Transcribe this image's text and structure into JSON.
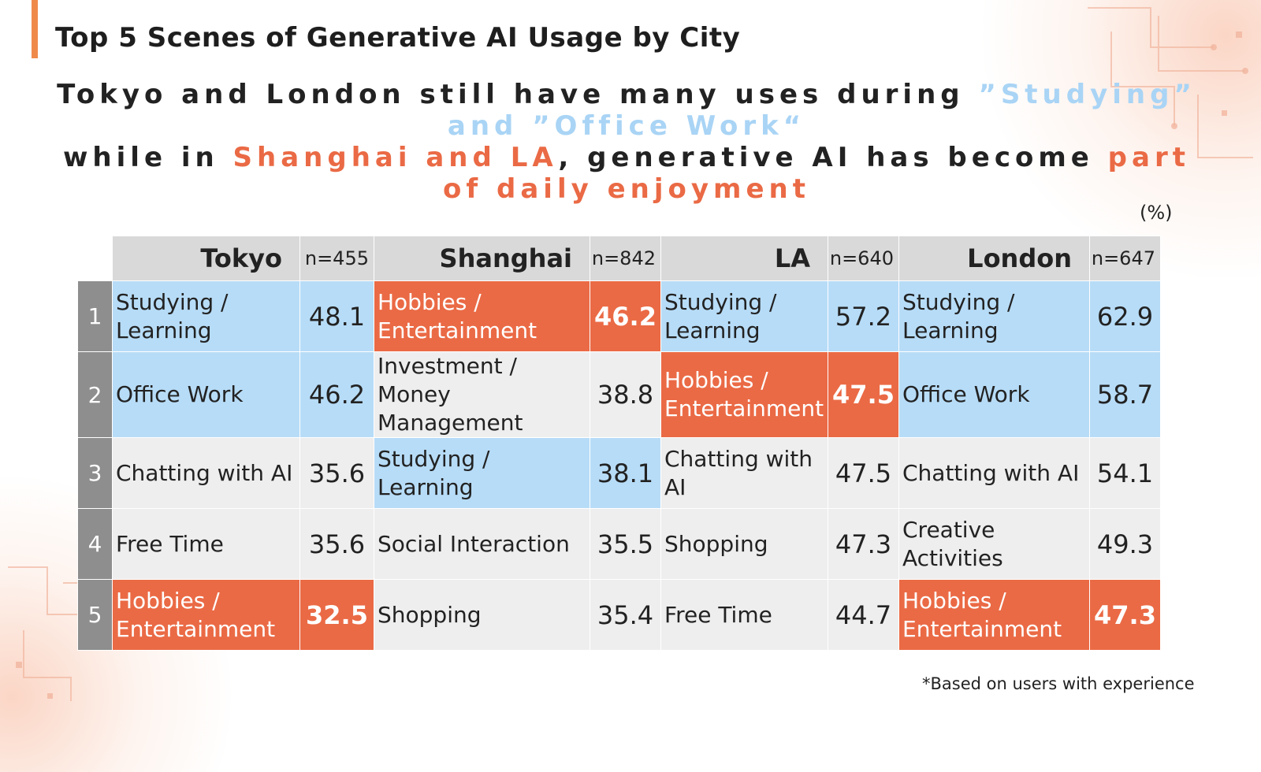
{
  "title": "Top 5 Scenes of Generative AI Usage by City",
  "headline": {
    "line1": "Tokyo and London still have many uses during ",
    "highlight1": "”Studying” and ”Office Work“",
    "line2_pre": "while in ",
    "highlight2": "Shanghai and LA",
    "line2_mid": ", generative AI has become ",
    "highlight3": "part of daily enjoyment"
  },
  "unit": "(%)",
  "footnote": "*Based on users with experience",
  "colors": {
    "highlight_blue": "#b7dcf7",
    "highlight_orange": "#ea6a45",
    "neutral": "#eeeeee",
    "accent": "#f08a4b"
  },
  "chart_data": {
    "type": "table",
    "ranks": [
      "1",
      "2",
      "3",
      "4",
      "5"
    ],
    "cities": [
      {
        "name": "Tokyo",
        "n": "n=455",
        "items": [
          {
            "scene": "Studying / Learning",
            "value": "48.1",
            "highlight": "blue"
          },
          {
            "scene": "Office Work",
            "value": "46.2",
            "highlight": "blue"
          },
          {
            "scene": "Chatting with AI",
            "value": "35.6",
            "highlight": "none"
          },
          {
            "scene": "Free Time",
            "value": "35.6",
            "highlight": "none"
          },
          {
            "scene": "Hobbies / Entertainment",
            "value": "32.5",
            "highlight": "orange"
          }
        ]
      },
      {
        "name": "Shanghai",
        "n": "n=842",
        "items": [
          {
            "scene": "Hobbies / Entertainment",
            "value": "46.2",
            "highlight": "orange"
          },
          {
            "scene": "Investment / Money Management",
            "value": "38.8",
            "highlight": "none"
          },
          {
            "scene": "Studying / Learning",
            "value": "38.1",
            "highlight": "blue"
          },
          {
            "scene": "Social Interaction",
            "value": "35.5",
            "highlight": "none"
          },
          {
            "scene": "Shopping",
            "value": "35.4",
            "highlight": "none"
          }
        ]
      },
      {
        "name": "LA",
        "n": "n=640",
        "items": [
          {
            "scene": "Studying / Learning",
            "value": "57.2",
            "highlight": "blue"
          },
          {
            "scene": "Hobbies / Entertainment",
            "value": "47.5",
            "highlight": "orange"
          },
          {
            "scene": "Chatting with AI",
            "value": "47.5",
            "highlight": "none"
          },
          {
            "scene": "Shopping",
            "value": "47.3",
            "highlight": "none"
          },
          {
            "scene": "Free Time",
            "value": "44.7",
            "highlight": "none"
          }
        ]
      },
      {
        "name": "London",
        "n": "n=647",
        "items": [
          {
            "scene": "Studying / Learning",
            "value": "62.9",
            "highlight": "blue"
          },
          {
            "scene": "Office Work",
            "value": "58.7",
            "highlight": "blue"
          },
          {
            "scene": "Chatting with AI",
            "value": "54.1",
            "highlight": "none"
          },
          {
            "scene": "Creative Activities",
            "value": "49.3",
            "highlight": "none"
          },
          {
            "scene": "Hobbies / Entertainment",
            "value": "47.3",
            "highlight": "orange"
          }
        ]
      }
    ]
  }
}
